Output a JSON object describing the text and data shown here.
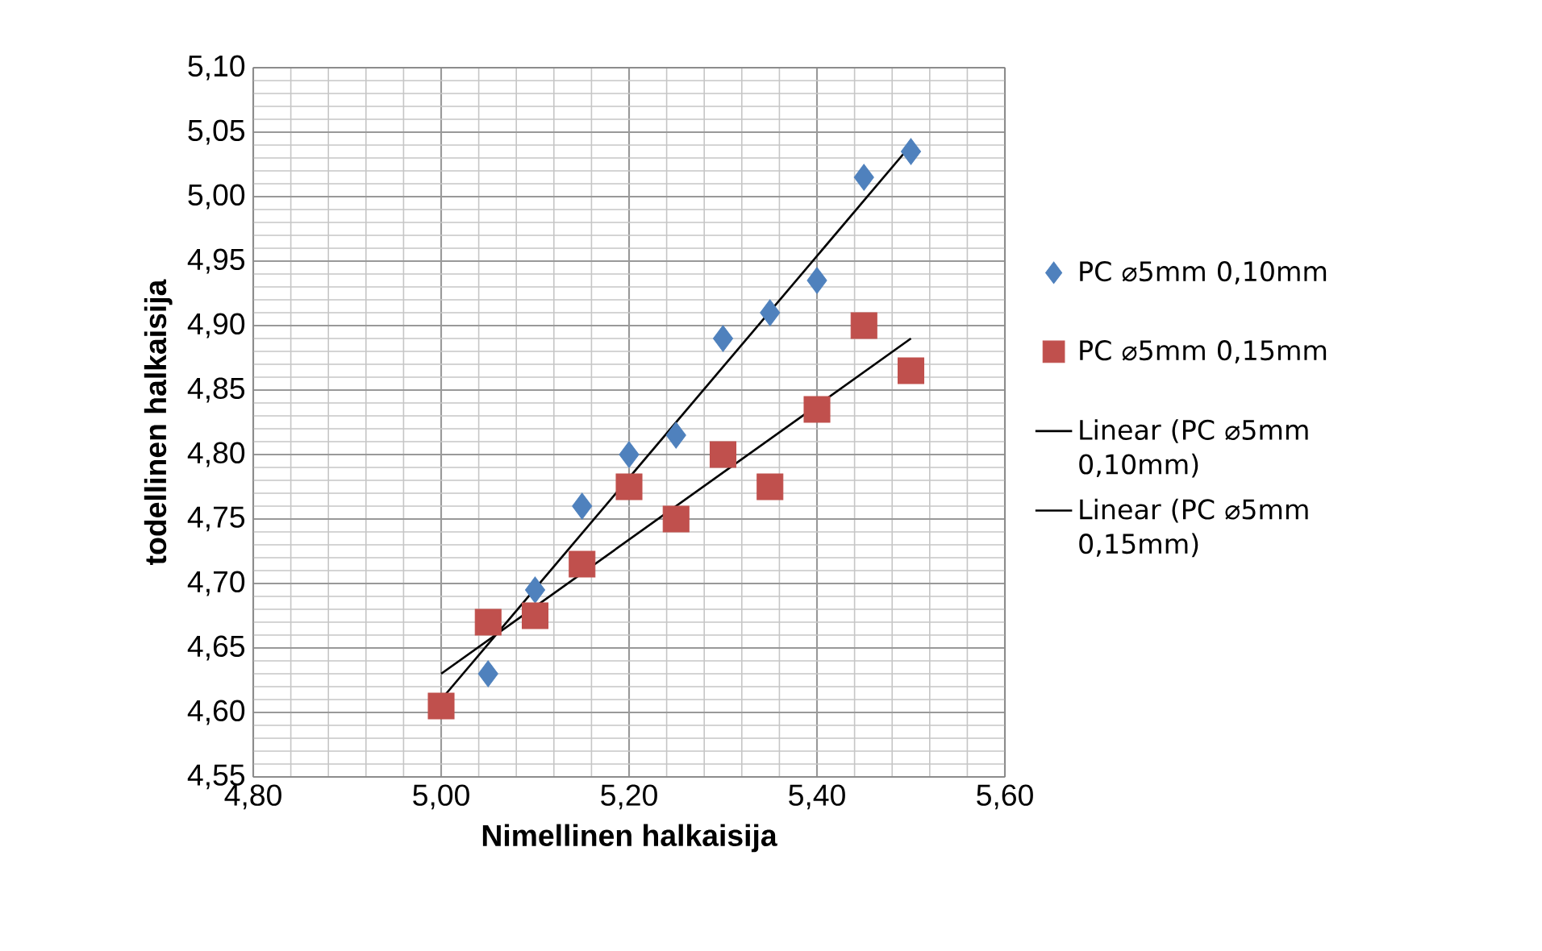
{
  "chart_data": {
    "type": "scatter",
    "xlabel": "Nimellinen halkaisija",
    "ylabel": "todellinen halkaisija",
    "xlim": [
      4.8,
      5.6
    ],
    "ylim": [
      4.55,
      5.1
    ],
    "xticks": [
      {
        "value": 4.8,
        "label": "4,80"
      },
      {
        "value": 5.0,
        "label": "5,00"
      },
      {
        "value": 5.2,
        "label": "5,20"
      },
      {
        "value": 5.4,
        "label": "5,40"
      },
      {
        "value": 5.6,
        "label": "5,60"
      }
    ],
    "yticks": [
      {
        "value": 4.55,
        "label": "4,55"
      },
      {
        "value": 4.6,
        "label": "4,60"
      },
      {
        "value": 4.65,
        "label": "4,65"
      },
      {
        "value": 4.7,
        "label": "4,70"
      },
      {
        "value": 4.75,
        "label": "4,75"
      },
      {
        "value": 4.8,
        "label": "4,80"
      },
      {
        "value": 4.85,
        "label": "4,85"
      },
      {
        "value": 4.9,
        "label": "4,90"
      },
      {
        "value": 4.95,
        "label": "4,95"
      },
      {
        "value": 5.0,
        "label": "5,00"
      },
      {
        "value": 5.05,
        "label": "5,05"
      },
      {
        "value": 5.1,
        "label": "5,10"
      }
    ],
    "grid": true,
    "legend": "right",
    "series": [
      {
        "name": "PC ⌀5mm 0,10mm",
        "marker": "diamond",
        "color": "#4f81bd",
        "x": [
          5.05,
          5.1,
          5.15,
          5.2,
          5.25,
          5.3,
          5.35,
          5.4,
          5.45,
          5.5
        ],
        "values": [
          4.63,
          4.695,
          4.76,
          4.8,
          4.815,
          4.89,
          4.91,
          4.935,
          5.015,
          5.035
        ]
      },
      {
        "name": "PC ⌀5mm 0,15mm",
        "marker": "square",
        "color": "#c0504d",
        "x": [
          5.0,
          5.05,
          5.1,
          5.15,
          5.2,
          5.25,
          5.3,
          5.35,
          5.4,
          5.45,
          5.5
        ],
        "values": [
          4.605,
          4.67,
          4.675,
          4.715,
          4.775,
          4.75,
          4.8,
          4.775,
          4.835,
          4.9,
          4.865
        ]
      },
      {
        "name": "Linear (PC ⌀5mm 0,10mm)",
        "type": "line",
        "marker": "none",
        "line_style": "solid",
        "color": "#000000",
        "x": [
          5.0,
          5.5
        ],
        "values": [
          4.61,
          5.04
        ]
      },
      {
        "name": "Linear (PC ⌀5mm 0,15mm)",
        "type": "line",
        "marker": "none",
        "line_style": "solid",
        "color": "#000000",
        "x": [
          5.0,
          5.5
        ],
        "values": [
          4.63,
          4.89
        ]
      }
    ]
  }
}
